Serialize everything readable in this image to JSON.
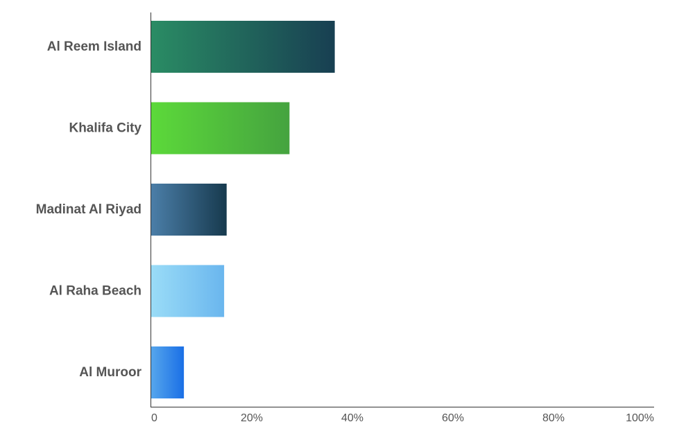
{
  "chart_data": {
    "type": "bar",
    "orientation": "horizontal",
    "categories": [
      "Al Reem Island",
      "Khalifa City",
      "Madinat Al Riyad",
      "Al Raha Beach",
      "Al Muroor"
    ],
    "values": [
      36.5,
      27.5,
      15,
      14.5,
      6.5
    ],
    "unit": "%",
    "xlim": [
      0,
      100
    ],
    "xticks": [
      0,
      20,
      40,
      60,
      80,
      100
    ],
    "xtick_labels": [
      "0",
      "20%",
      "40%",
      "60%",
      "80%",
      "100%"
    ],
    "title": "",
    "xlabel": "",
    "ylabel": "",
    "grid": false,
    "legend": "none",
    "bar_colors": [
      [
        "#2a8c64",
        "#183f52"
      ],
      [
        "#5cd93a",
        "#45a33f"
      ],
      [
        "#4b7ea8",
        "#173a4e"
      ],
      [
        "#9adcf7",
        "#6ab6ee"
      ],
      [
        "#56a6ec",
        "#1a6fe6"
      ]
    ]
  }
}
